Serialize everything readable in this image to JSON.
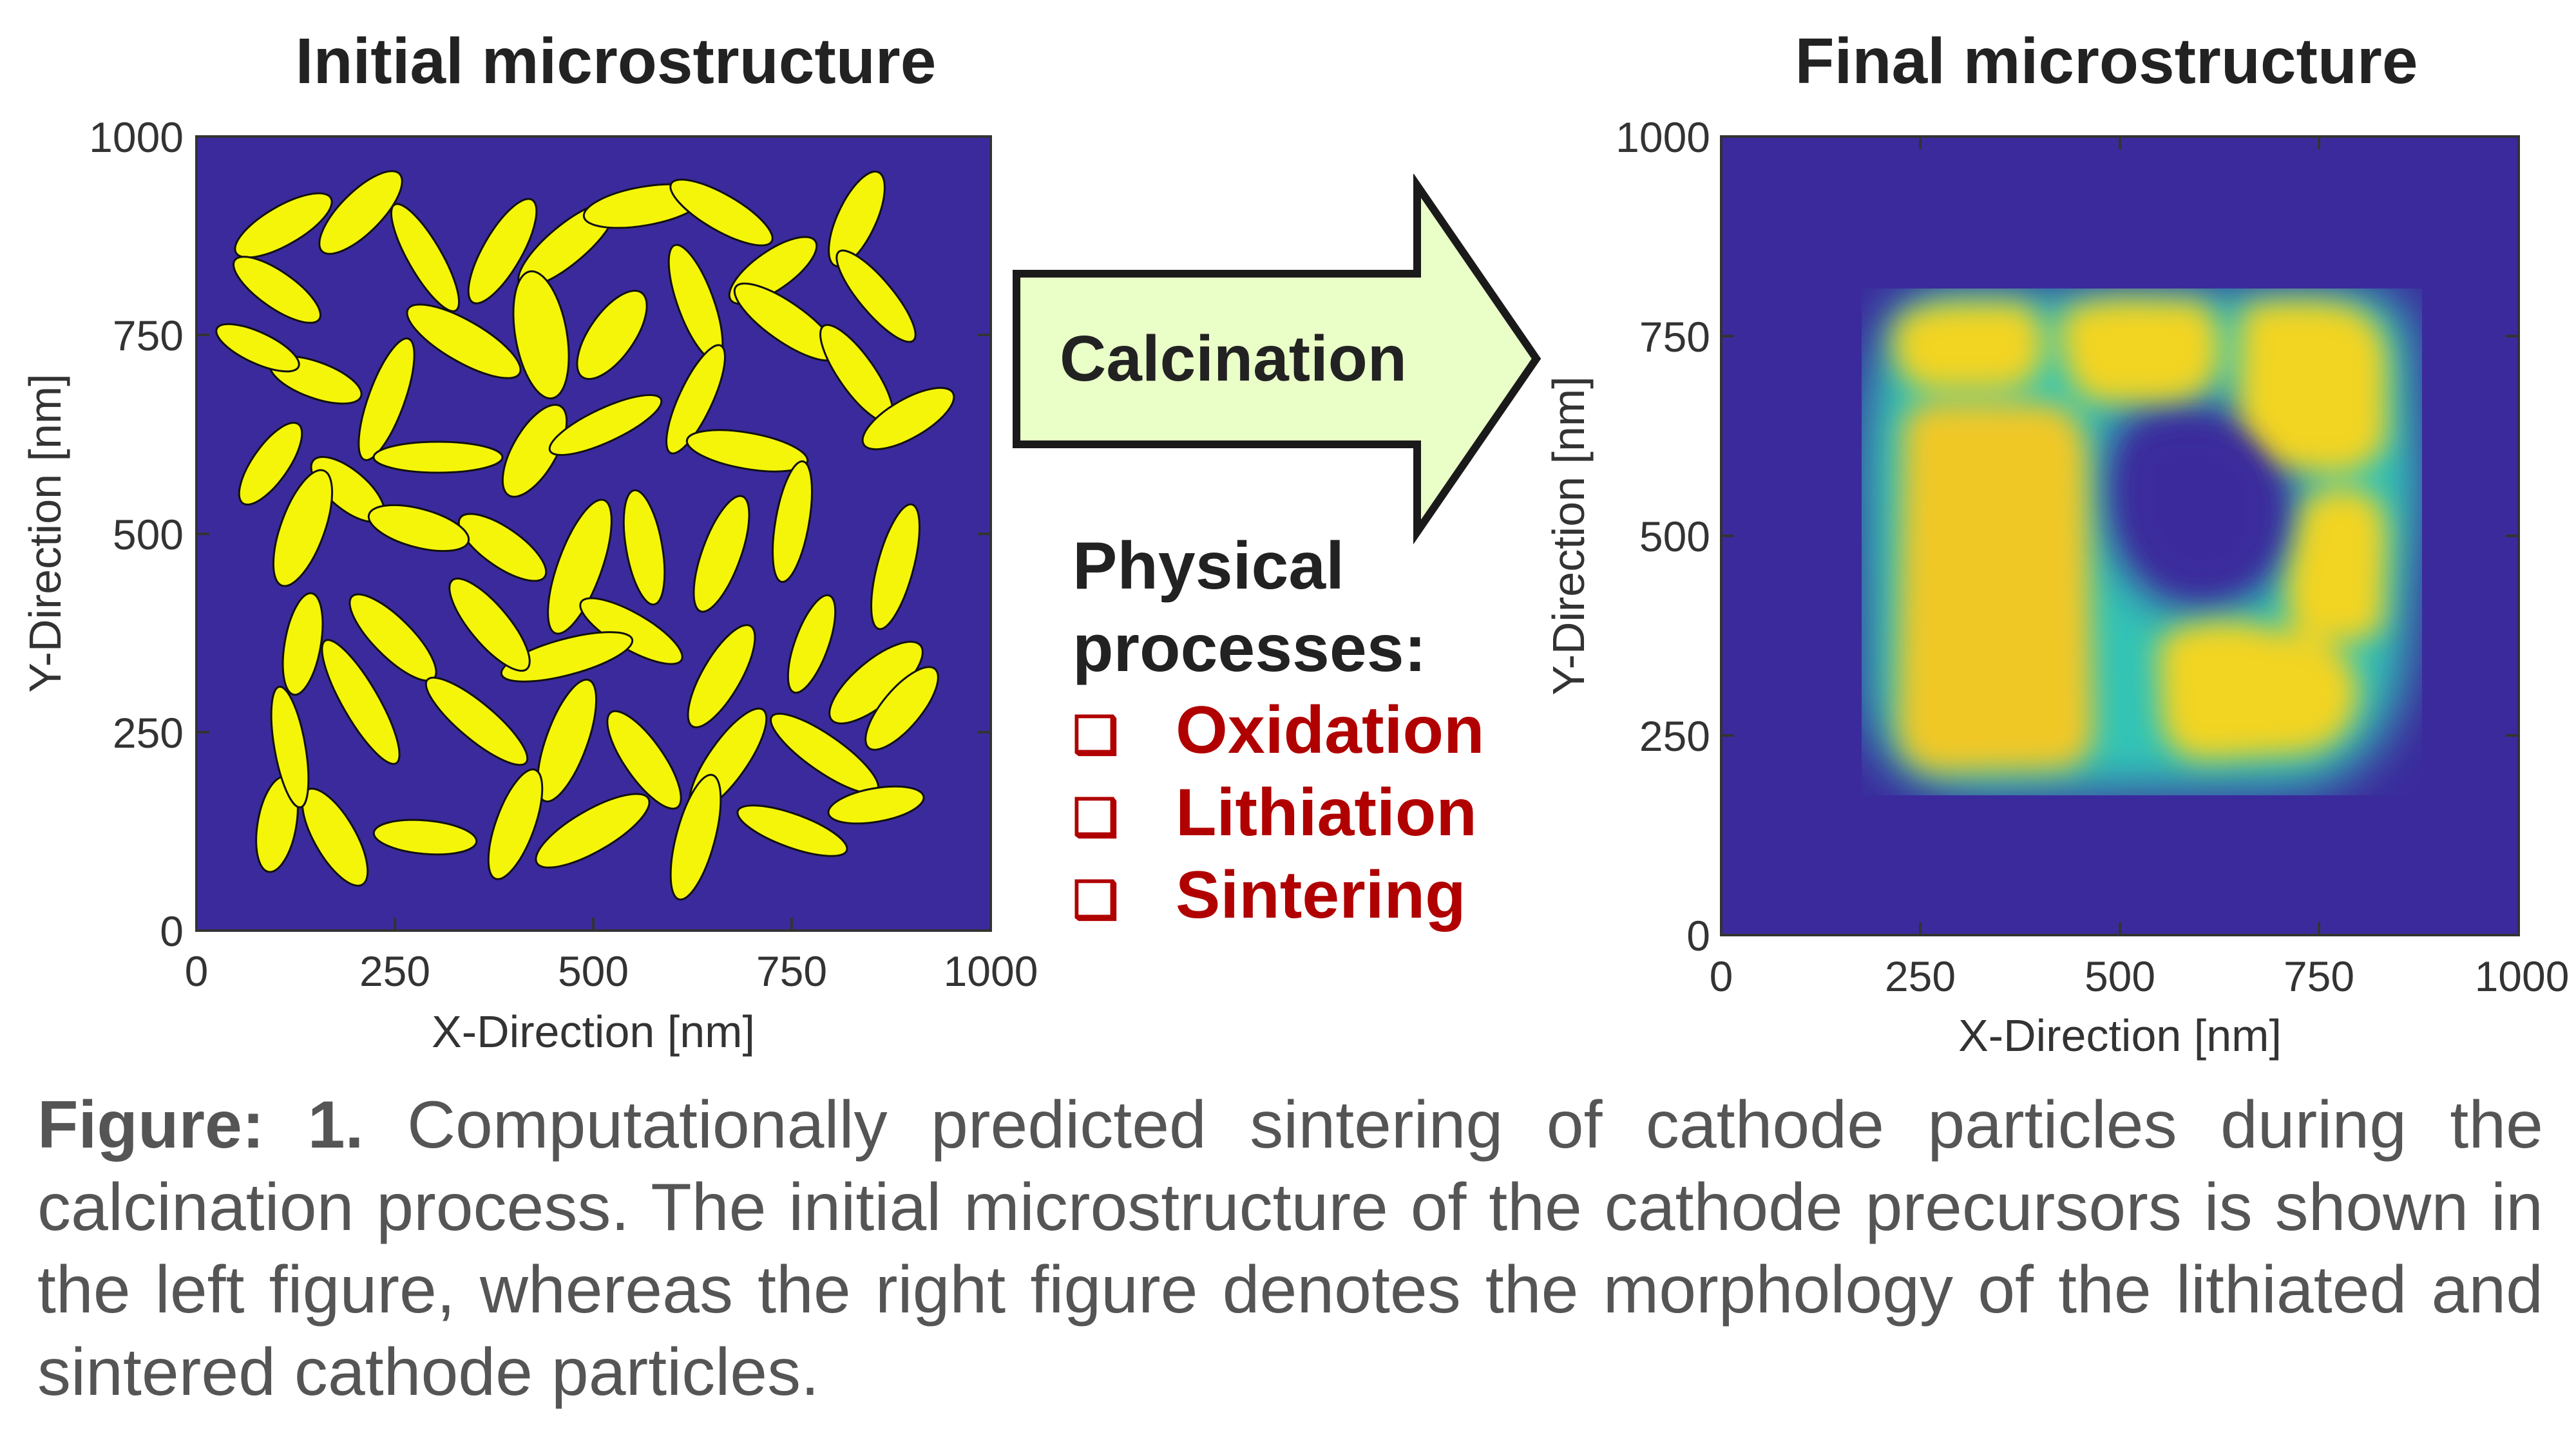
{
  "left_panel": {
    "title": "Initial microstructure",
    "xlabel": "X-Direction [nm]",
    "ylabel": "Y-Direction [nm]",
    "xticks": [
      "0",
      "250",
      "500",
      "750",
      "1000"
    ],
    "yticks": [
      "0",
      "250",
      "500",
      "750",
      "1000"
    ],
    "background_color": "#3b2a9c",
    "particle_color": "#f5f50a"
  },
  "right_panel": {
    "title": "Final microstructure",
    "xlabel": "X-Direction [nm]",
    "ylabel": "Y-Direction [nm]",
    "xticks": [
      "0",
      "250",
      "500",
      "750",
      "1000"
    ],
    "yticks": [
      "0",
      "250",
      "500",
      "750",
      "1000"
    ],
    "background_color": "#3b2a9c",
    "particle_color": "#f3e21e"
  },
  "arrow": {
    "label": "Calcination",
    "fill_color": "#eaffc8"
  },
  "processes": {
    "heading_line1": "Physical",
    "heading_line2": "processes:",
    "checkbox_glyph": "❑",
    "items": [
      "Oxidation",
      "Lithiation",
      "Sintering"
    ],
    "item_color": "#b00000"
  },
  "caption": {
    "label": "Figure: 1.",
    "text": "Computationally predicted sintering of cathode particles during the calcination process. The initial microstructure of the cathode precursors is shown in the left figure, whereas the right figure denotes the morphology of the lithiated and sintered cathode particles."
  }
}
